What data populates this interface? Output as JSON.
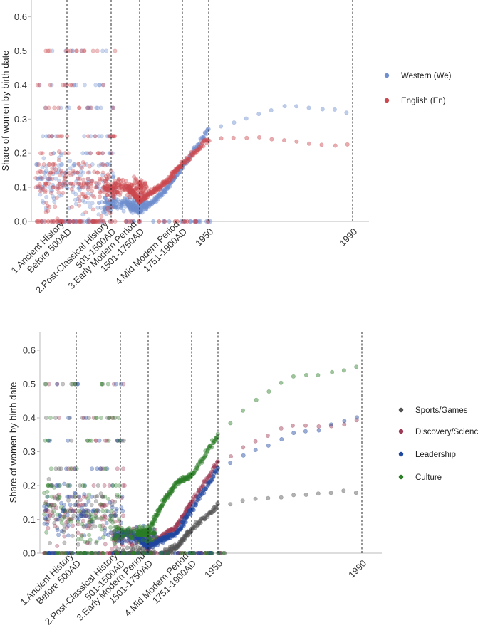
{
  "chart_data": [
    {
      "type": "scatter",
      "ylabel": "Share of women by birth date",
      "xlabel": "",
      "ylim": [
        0,
        0.65
      ],
      "y_ticks": [
        "0.0",
        "0.1",
        "0.2",
        "0.3",
        "0.4",
        "0.5",
        "0.6"
      ],
      "y_tick_values": [
        0,
        0.1,
        0.2,
        0.3,
        0.4,
        0.5,
        0.6
      ],
      "x_ticks": [
        {
          "lines": [
            "1.Ancient History",
            "Before 500AD"
          ],
          "at": 500
        },
        {
          "lines": [
            "2.Post-Classical History",
            "501-1500AD"
          ],
          "at": 1500
        },
        {
          "lines": [
            "3.Early Modern Period",
            "1501-1750AD"
          ],
          "at": 1750
        },
        {
          "lines": [
            "4.Mid Modern Period",
            "1751-1900AD"
          ],
          "at": 1900
        },
        {
          "lines": [
            "1950"
          ],
          "at": 1950
        },
        {
          "lines": [
            "1990"
          ],
          "at": 1990
        }
      ],
      "period_boundaries": [
        "500",
        "1500",
        "1750",
        "1900",
        "1950",
        "1990"
      ],
      "legend": [
        "Western (We)",
        "English (En)"
      ],
      "legend_position": "right",
      "series": [
        {
          "name": "Western (We)",
          "color": "#6f8fcf",
          "trend": [
            [
              1650,
              0.05
            ],
            [
              1750,
              0.03
            ],
            [
              1800,
              0.06
            ],
            [
              1850,
              0.1
            ],
            [
              1900,
              0.16
            ],
            [
              1950,
              0.27
            ],
            [
              1960,
              0.3
            ],
            [
              1970,
              0.34
            ],
            [
              1980,
              0.33
            ],
            [
              1990,
              0.32
            ]
          ]
        },
        {
          "name": "English (En)",
          "color": "#cc4a4f",
          "trend": [
            [
              1650,
              0.1
            ],
            [
              1750,
              0.06
            ],
            [
              1800,
              0.09
            ],
            [
              1850,
              0.12
            ],
            [
              1900,
              0.17
            ],
            [
              1950,
              0.24
            ],
            [
              1960,
              0.245
            ],
            [
              1970,
              0.24
            ],
            [
              1980,
              0.225
            ],
            [
              1990,
              0.225
            ]
          ]
        }
      ]
    },
    {
      "type": "scatter",
      "ylabel": "Share of women by birth date",
      "xlabel": "",
      "ylim": [
        0,
        0.65
      ],
      "y_ticks": [
        "0.0",
        "0.1",
        "0.2",
        "0.3",
        "0.4",
        "0.5",
        "0.6"
      ],
      "y_tick_values": [
        0,
        0.1,
        0.2,
        0.3,
        0.4,
        0.5,
        0.6
      ],
      "x_ticks": [
        {
          "lines": [
            "1.Ancient History",
            "Before 500AD"
          ],
          "at": 500
        },
        {
          "lines": [
            "2.Post-Classical History",
            "501-1500AD"
          ],
          "at": 1500
        },
        {
          "lines": [
            "3.Early Modern Period",
            "1501-1750AD"
          ],
          "at": 1750
        },
        {
          "lines": [
            "4.Mid Modern Period",
            "1751-1900AD"
          ],
          "at": 1900
        },
        {
          "lines": [
            "1950"
          ],
          "at": 1950
        },
        {
          "lines": [
            "1990"
          ],
          "at": 1990
        }
      ],
      "period_boundaries": [
        "500",
        "1500",
        "1750",
        "1900",
        "1950",
        "1990"
      ],
      "legend": [
        "Sports/Games",
        "Discovery/Science",
        "Leadership",
        "Culture"
      ],
      "legend_position": "right",
      "series": [
        {
          "name": "Sports/Games",
          "color": "#555555",
          "trend": [
            [
              1800,
              0.0
            ],
            [
              1850,
              0.02
            ],
            [
              1900,
              0.07
            ],
            [
              1950,
              0.14
            ],
            [
              1960,
              0.16
            ],
            [
              1970,
              0.17
            ],
            [
              1980,
              0.18
            ],
            [
              1990,
              0.18
            ]
          ]
        },
        {
          "name": "Discovery/Science",
          "color": "#9e3a55",
          "trend": [
            [
              1650,
              0.05
            ],
            [
              1750,
              0.02
            ],
            [
              1800,
              0.05
            ],
            [
              1850,
              0.08
            ],
            [
              1900,
              0.15
            ],
            [
              1950,
              0.27
            ],
            [
              1960,
              0.33
            ],
            [
              1970,
              0.38
            ],
            [
              1980,
              0.37
            ],
            [
              1990,
              0.4
            ]
          ]
        },
        {
          "name": "Leadership",
          "color": "#1f48a0",
          "trend": [
            [
              1650,
              0.05
            ],
            [
              1750,
              0.02
            ],
            [
              1800,
              0.04
            ],
            [
              1850,
              0.06
            ],
            [
              1900,
              0.13
            ],
            [
              1950,
              0.25
            ],
            [
              1960,
              0.3
            ],
            [
              1970,
              0.35
            ],
            [
              1980,
              0.37
            ],
            [
              1990,
              0.41
            ]
          ]
        },
        {
          "name": "Culture",
          "color": "#2d7f28",
          "trend": [
            [
              1650,
              0.06
            ],
            [
              1750,
              0.06
            ],
            [
              1800,
              0.15
            ],
            [
              1850,
              0.21
            ],
            [
              1900,
              0.23
            ],
            [
              1950,
              0.35
            ],
            [
              1960,
              0.45
            ],
            [
              1970,
              0.52
            ],
            [
              1980,
              0.53
            ],
            [
              1990,
              0.55
            ]
          ]
        }
      ]
    }
  ]
}
